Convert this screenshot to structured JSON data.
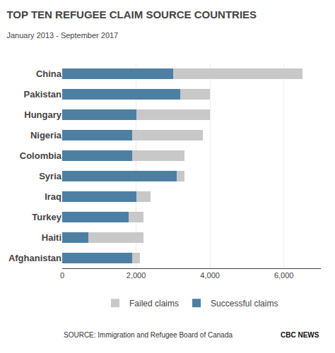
{
  "chart_data": {
    "type": "bar",
    "orientation": "horizontal",
    "stacked": true,
    "title": "TOP TEN REFUGEE CLAIM SOURCE COUNTRIES",
    "subtitle": "January 2013 - September 2017",
    "categories": [
      "China",
      "Pakistan",
      "Hungary",
      "Nigeria",
      "Colombia",
      "Syria",
      "Iraq",
      "Turkey",
      "Haiti",
      "Afghanistan"
    ],
    "series": [
      {
        "name": "Successful claims",
        "color": "#4d7fa3",
        "values": [
          3000,
          3200,
          2000,
          1900,
          1900,
          3100,
          2000,
          1800,
          700,
          1900
        ]
      },
      {
        "name": "Failed claims",
        "color": "#c8c8c8",
        "values": [
          3500,
          800,
          2000,
          1900,
          1400,
          200,
          400,
          400,
          1500,
          200
        ]
      }
    ],
    "xlim": [
      0,
      7000
    ],
    "xticks": [
      0,
      {
        "value": 2000,
        "label": "2,000"
      },
      {
        "value": 4000,
        "label": "4,000"
      },
      {
        "value": 6000,
        "label": "6,000"
      }
    ],
    "grid": true,
    "legend": "bottom",
    "annotations": [
      "SOURCE: Immigration and Refugee Board of Canada",
      "CBC NEWS"
    ]
  }
}
